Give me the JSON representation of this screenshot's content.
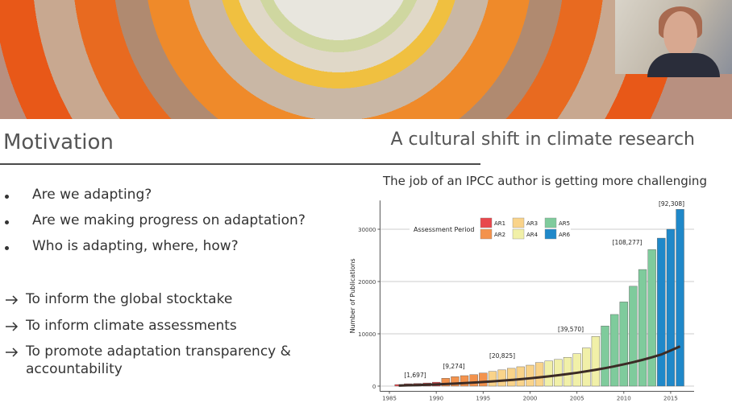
{
  "header": {
    "title": "Motivation",
    "subtitle": "A cultural shift in climate research"
  },
  "questions": [
    "Are we adapting?",
    "Are we making progress on adaptation?",
    "Who is adapting, where, how?"
  ],
  "goals": [
    "To inform the global stocktake",
    "To inform climate assessments",
    "To promote adaptation transparency & accountability"
  ],
  "chart_data": {
    "type": "bar",
    "title": "The job of an IPCC author is getting more challenging",
    "y_label": "Number of Publications",
    "legend_title": "Assessment Period",
    "x": [
      1986,
      1987,
      1988,
      1989,
      1990,
      1991,
      1992,
      1993,
      1994,
      1995,
      1996,
      1997,
      1998,
      1999,
      2000,
      2001,
      2002,
      2003,
      2004,
      2005,
      2006,
      2007,
      2008,
      2009,
      2010,
      2011,
      2012,
      2013,
      2014,
      2015,
      2016
    ],
    "series": [
      {
        "name": "AR1",
        "color": "#e8474d",
        "values": [
          300,
          450,
          500,
          600,
          750,
          null,
          null,
          null,
          null,
          null,
          null,
          null,
          null,
          null,
          null,
          null,
          null,
          null,
          null,
          null,
          null,
          null,
          null,
          null,
          null,
          null,
          null,
          null,
          null,
          null,
          null
        ]
      },
      {
        "name": "AR2",
        "color": "#f3924c",
        "values": [
          null,
          null,
          null,
          null,
          null,
          1500,
          1800,
          2000,
          2200,
          2500,
          null,
          null,
          null,
          null,
          null,
          null,
          null,
          null,
          null,
          null,
          null,
          null,
          null,
          null,
          null,
          null,
          null,
          null,
          null,
          null,
          null
        ]
      },
      {
        "name": "AR3",
        "color": "#f9d38a",
        "values": [
          null,
          null,
          null,
          null,
          null,
          null,
          null,
          null,
          null,
          null,
          2800,
          3100,
          3400,
          3700,
          4000,
          4500,
          null,
          null,
          null,
          null,
          null,
          null,
          null,
          null,
          null,
          null,
          null,
          null,
          null,
          null,
          null
        ]
      },
      {
        "name": "AR4",
        "color": "#f1f0a8",
        "values": [
          null,
          null,
          null,
          null,
          null,
          null,
          null,
          null,
          null,
          null,
          null,
          null,
          null,
          null,
          null,
          null,
          4800,
          5100,
          5500,
          6200,
          7300,
          9500,
          null,
          null,
          null,
          null,
          null,
          null,
          null,
          null,
          null
        ]
      },
      {
        "name": "AR5",
        "color": "#7fcb9c",
        "values": [
          null,
          null,
          null,
          null,
          null,
          null,
          null,
          null,
          null,
          null,
          null,
          null,
          null,
          null,
          null,
          null,
          null,
          null,
          null,
          null,
          null,
          null,
          11500,
          13700,
          16100,
          19100,
          22300,
          26100,
          null,
          null,
          null
        ]
      },
      {
        "name": "AR6",
        "color": "#1f88c9",
        "values": [
          null,
          null,
          null,
          null,
          null,
          null,
          null,
          null,
          null,
          null,
          null,
          null,
          null,
          null,
          null,
          null,
          null,
          null,
          null,
          null,
          null,
          null,
          null,
          null,
          null,
          null,
          null,
          null,
          28300,
          30000,
          33800
        ]
      }
    ],
    "line_values": [
      100,
      150,
      200,
      260,
      320,
      400,
      480,
      570,
      670,
      780,
      900,
      1030,
      1170,
      1320,
      1490,
      1670,
      1860,
      2070,
      2300,
      2550,
      2820,
      3110,
      3430,
      3780,
      4160,
      4570,
      5020,
      5510,
      6040,
      6800,
      7600
    ],
    "line_color": "#3b2b25",
    "annotations": [
      "[1,697]",
      "[9,274]",
      "[20,825]",
      "[39,570]",
      "[108,277]",
      "[92,308]"
    ],
    "xlim": [
      1984,
      2017.5
    ],
    "xticks": [
      1985,
      1990,
      1995,
      2000,
      2005,
      2010,
      2015
    ],
    "ylim": [
      -1000,
      35500
    ],
    "yticks": [
      0,
      10000,
      20000,
      30000
    ],
    "grid": true
  }
}
